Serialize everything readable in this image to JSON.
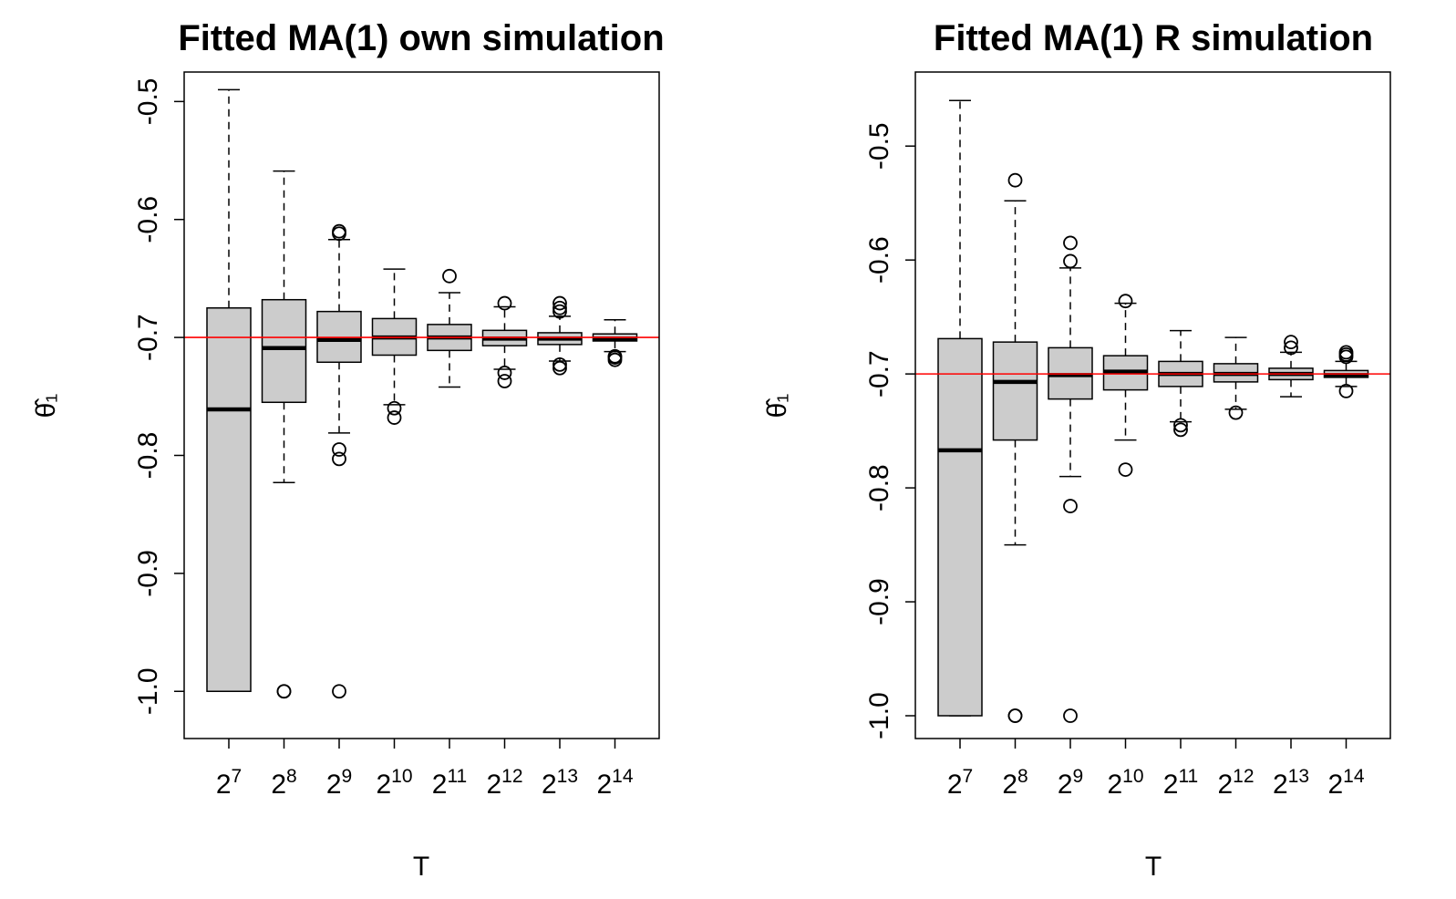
{
  "chart_data": [
    {
      "type": "boxplot",
      "title": "Fitted MA(1) own simulation",
      "xlabel": "T",
      "ylabel": "θ̂₁",
      "ylim": [
        -1.04,
        -0.475
      ],
      "yticks": [
        -1.0,
        -0.9,
        -0.8,
        -0.7,
        -0.6,
        -0.5
      ],
      "ytick_labels": [
        "-1.0",
        "-0.9",
        "-0.8",
        "-0.7",
        "-0.6",
        "-0.5"
      ],
      "reference_line": -0.7,
      "reference_color": "#ff0000",
      "box_fill": "#cccccc",
      "categories": [
        {
          "base": "2",
          "exp": "7"
        },
        {
          "base": "2",
          "exp": "8"
        },
        {
          "base": "2",
          "exp": "9"
        },
        {
          "base": "2",
          "exp": "10"
        },
        {
          "base": "2",
          "exp": "11"
        },
        {
          "base": "2",
          "exp": "12"
        },
        {
          "base": "2",
          "exp": "13"
        },
        {
          "base": "2",
          "exp": "14"
        }
      ],
      "boxes": [
        {
          "q1": -1.0,
          "median": -0.761,
          "q3": -0.675,
          "whisker_low": -1.0,
          "whisker_high": -0.49,
          "outliers": []
        },
        {
          "q1": -0.755,
          "median": -0.709,
          "q3": -0.668,
          "whisker_low": -0.823,
          "whisker_high": -0.559,
          "outliers": [
            -1.0,
            -1.0
          ]
        },
        {
          "q1": -0.721,
          "median": -0.702,
          "q3": -0.678,
          "whisker_low": -0.781,
          "whisker_high": -0.617,
          "outliers": [
            -1.0,
            -0.795,
            -0.803,
            -0.61,
            -0.612
          ]
        },
        {
          "q1": -0.715,
          "median": -0.7,
          "q3": -0.684,
          "whisker_low": -0.757,
          "whisker_high": -0.642,
          "outliers": [
            -0.76,
            -0.768
          ]
        },
        {
          "q1": -0.711,
          "median": -0.7,
          "q3": -0.689,
          "whisker_low": -0.742,
          "whisker_high": -0.662,
          "outliers": [
            -0.648
          ]
        },
        {
          "q1": -0.707,
          "median": -0.701,
          "q3": -0.694,
          "whisker_low": -0.727,
          "whisker_high": -0.674,
          "outliers": [
            -0.737,
            -0.73,
            -0.671
          ]
        },
        {
          "q1": -0.706,
          "median": -0.701,
          "q3": -0.696,
          "whisker_low": -0.72,
          "whisker_high": -0.682,
          "outliers": [
            -0.726,
            -0.723,
            -0.678,
            -0.675,
            -0.671
          ]
        },
        {
          "q1": -0.703,
          "median": -0.701,
          "q3": -0.697,
          "whisker_low": -0.712,
          "whisker_high": -0.685,
          "outliers": [
            -0.716,
            -0.719,
            -0.717
          ]
        }
      ]
    },
    {
      "type": "boxplot",
      "title": "Fitted MA(1) R simulation",
      "xlabel": "T",
      "ylabel": "θ̂₁",
      "ylim": [
        -1.02,
        -0.435
      ],
      "yticks": [
        -1.0,
        -0.9,
        -0.8,
        -0.7,
        -0.6,
        -0.5
      ],
      "ytick_labels": [
        "-1.0",
        "-0.9",
        "-0.8",
        "-0.7",
        "-0.6",
        "-0.5"
      ],
      "reference_line": -0.7,
      "reference_color": "#ff0000",
      "box_fill": "#cccccc",
      "categories": [
        {
          "base": "2",
          "exp": "7"
        },
        {
          "base": "2",
          "exp": "8"
        },
        {
          "base": "2",
          "exp": "9"
        },
        {
          "base": "2",
          "exp": "10"
        },
        {
          "base": "2",
          "exp": "11"
        },
        {
          "base": "2",
          "exp": "12"
        },
        {
          "base": "2",
          "exp": "13"
        },
        {
          "base": "2",
          "exp": "14"
        }
      ],
      "boxes": [
        {
          "q1": -1.0,
          "median": -0.767,
          "q3": -0.669,
          "whisker_low": -1.0,
          "whisker_high": -0.46,
          "outliers": []
        },
        {
          "q1": -0.758,
          "median": -0.707,
          "q3": -0.672,
          "whisker_low": -0.85,
          "whisker_high": -0.548,
          "outliers": [
            -1.0,
            -1.0,
            -0.53
          ]
        },
        {
          "q1": -0.722,
          "median": -0.701,
          "q3": -0.677,
          "whisker_low": -0.79,
          "whisker_high": -0.607,
          "outliers": [
            -1.0,
            -0.816,
            -0.601,
            -0.585
          ]
        },
        {
          "q1": -0.714,
          "median": -0.698,
          "q3": -0.684,
          "whisker_low": -0.758,
          "whisker_high": -0.638,
          "outliers": [
            -0.784,
            -0.636
          ]
        },
        {
          "q1": -0.711,
          "median": -0.7,
          "q3": -0.689,
          "whisker_low": -0.742,
          "whisker_high": -0.662,
          "outliers": [
            -0.749,
            -0.745
          ]
        },
        {
          "q1": -0.707,
          "median": -0.7,
          "q3": -0.691,
          "whisker_low": -0.731,
          "whisker_high": -0.668,
          "outliers": [
            -0.734
          ]
        },
        {
          "q1": -0.705,
          "median": -0.7,
          "q3": -0.695,
          "whisker_low": -0.72,
          "whisker_high": -0.681,
          "outliers": [
            -0.677,
            -0.672
          ]
        },
        {
          "q1": -0.703,
          "median": -0.701,
          "q3": -0.697,
          "whisker_low": -0.711,
          "whisker_high": -0.689,
          "outliers": [
            -0.715,
            -0.683,
            -0.681,
            -0.685
          ]
        }
      ]
    }
  ]
}
